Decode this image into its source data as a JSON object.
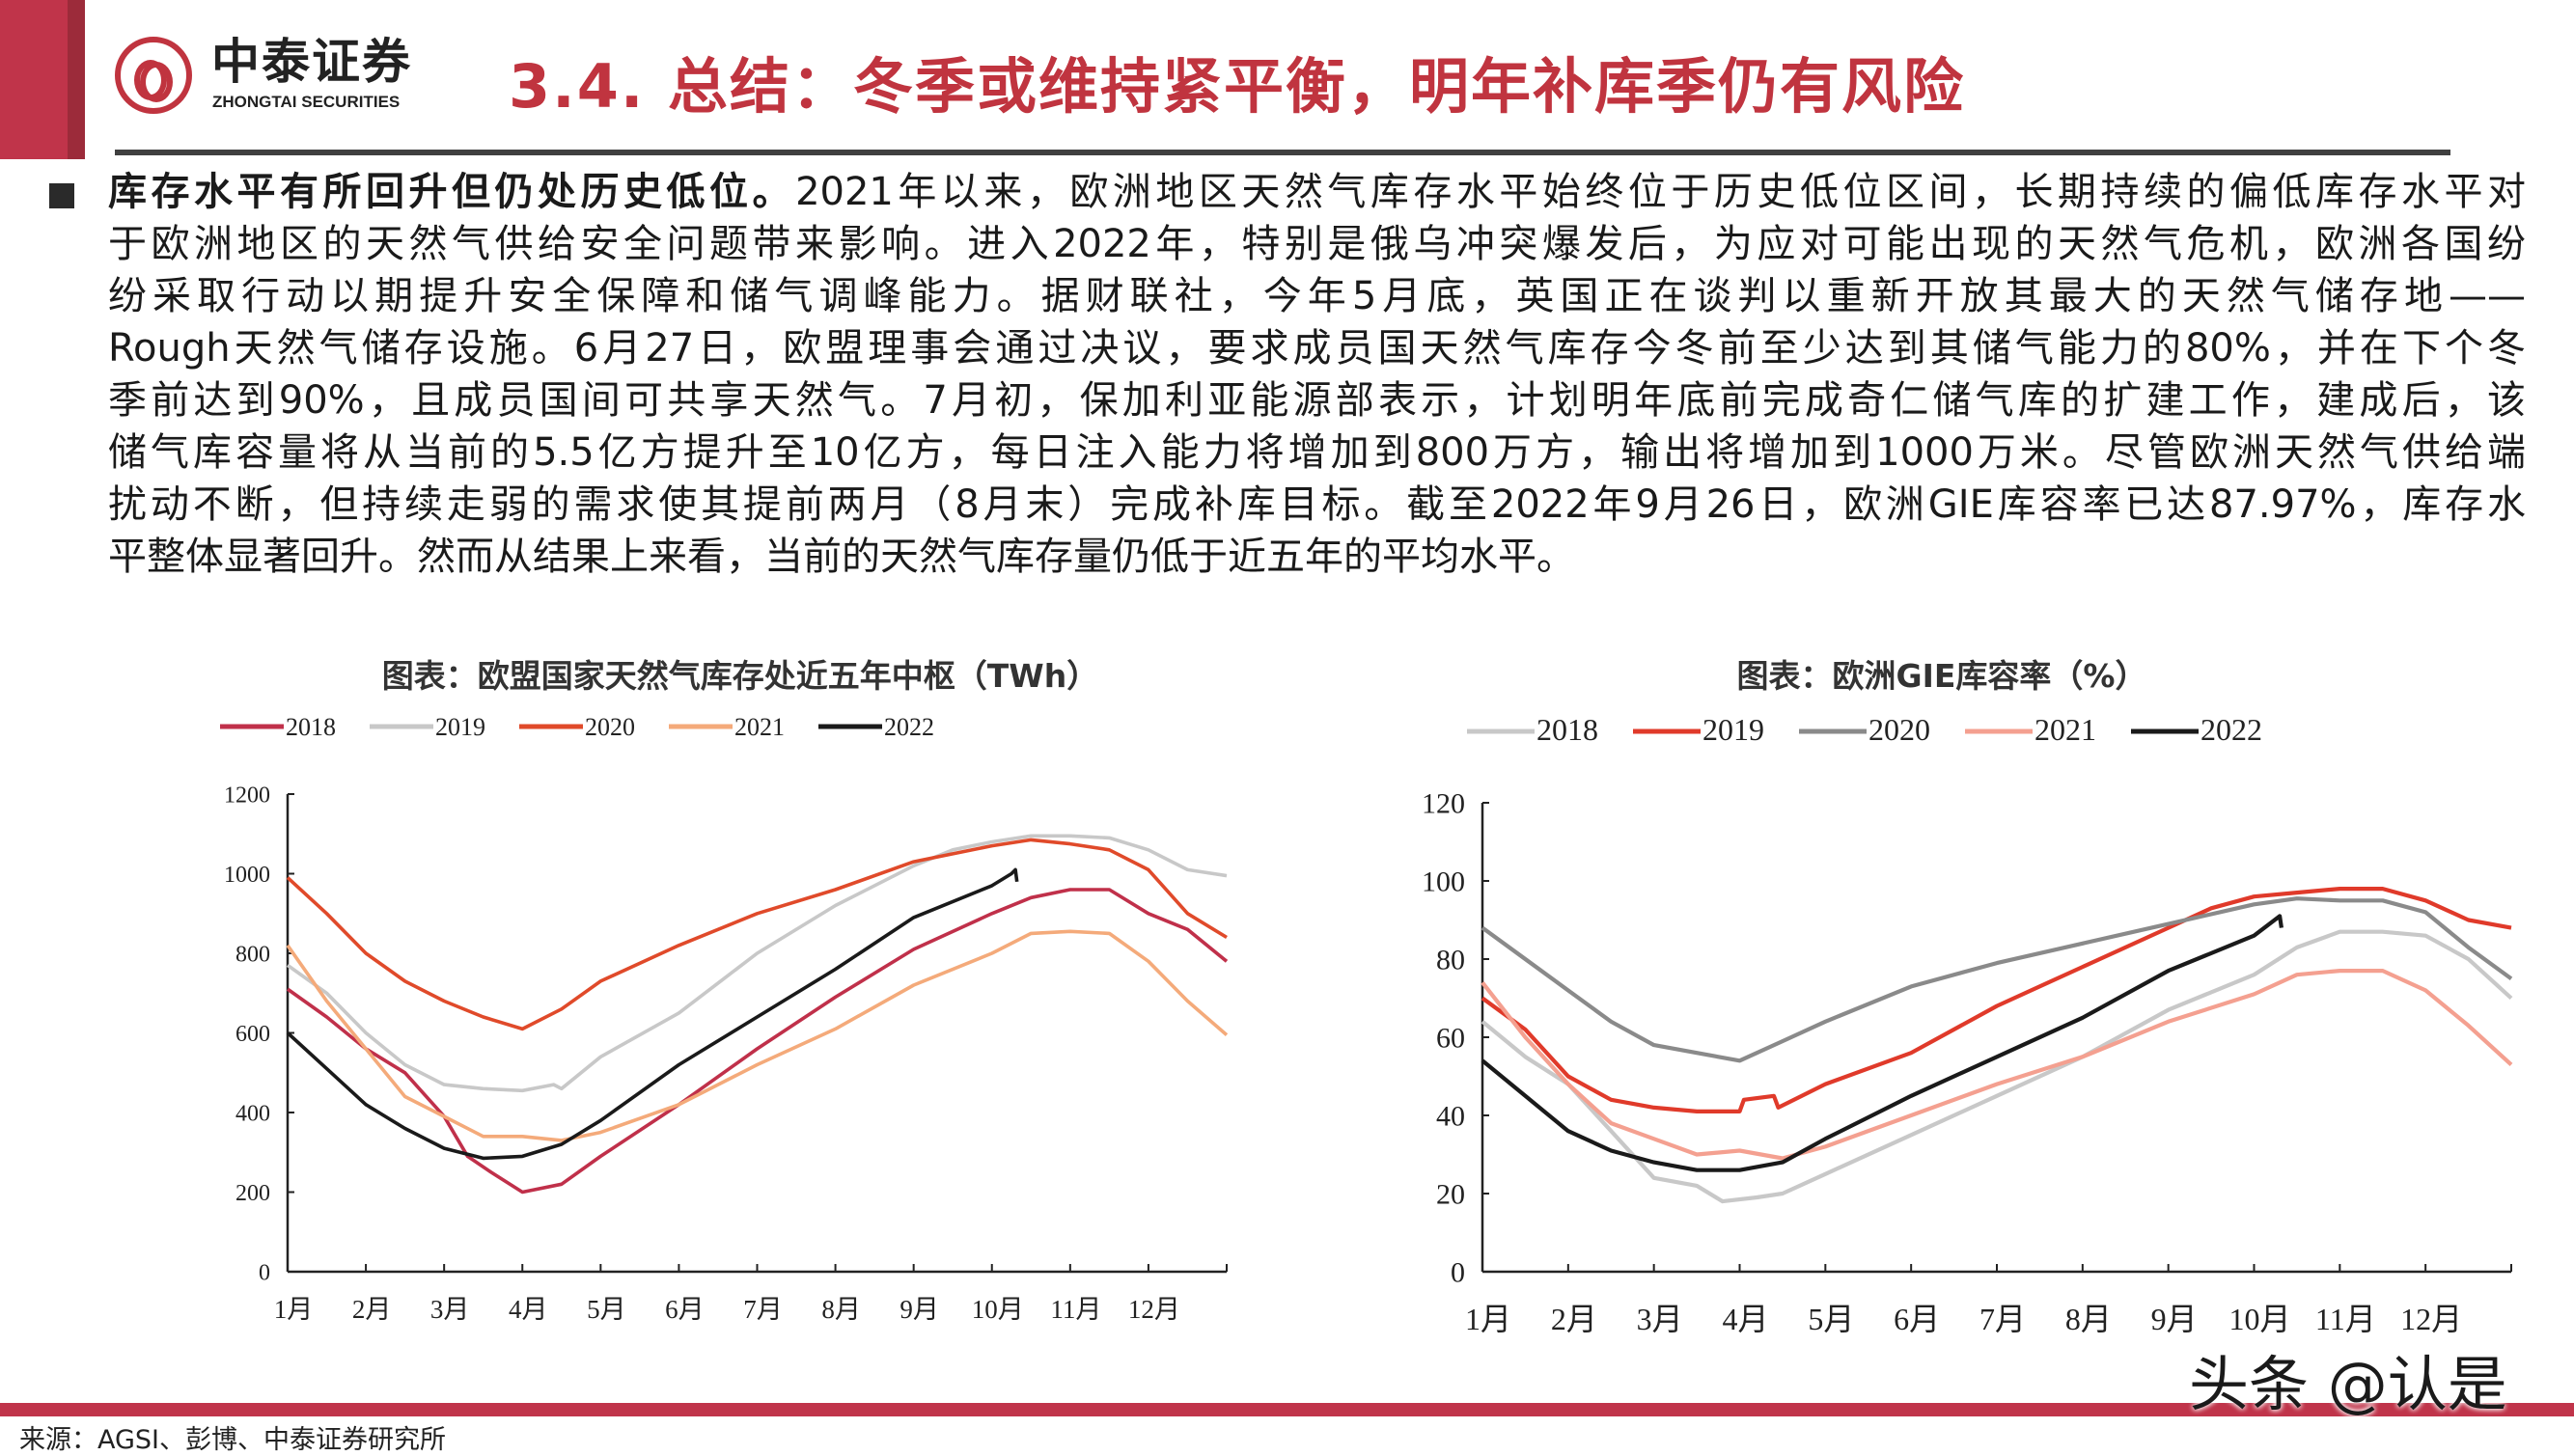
{
  "header": {
    "logo_cn": "中泰证券",
    "logo_en": "ZHONGTAI SECURITIES",
    "title": "3.4.  总结：冬季或维持紧平衡，明年补库季仍有风险"
  },
  "body": {
    "lead": "库存水平有所回升但仍处历史低位。",
    "lines": [
      "2021年以来，欧洲地区天然气库存水平始终位于历史低位区间，长期持续的偏低库存水平对",
      "于欧洲地区的天然气供给安全问题带来影响。进入2022年，特别是俄乌冲突爆发后，为应对可能出现的天然气危机，欧洲各国纷",
      "纷采取行动以期提升安全保障和储气调峰能力。据财联社，今年5月底，英国正在谈判以重新开放其最大的天然气储存地——",
      "Rough天然气储存设施。6月27日，欧盟理事会通过决议，要求成员国天然气库存今冬前至少达到其储气能力的80%，并在下个冬",
      "季前达到90%，且成员国间可共享天然气。7月初，保加利亚能源部表示，计划明年底前完成奇仁储气库的扩建工作，建成后，该",
      "储气库容量将从当前的5.5亿方提升至10亿方，每日注入能力将增加到800万方，输出将增加到1000万米。尽管欧洲天然气供给端",
      "扰动不断，但持续走弱的需求使其提前两月（8月末）完成补库目标。截至2022年9月26日，欧洲GIE库容率已达87.97%，库存水",
      "平整体显著回升。然而从结果上来看，当前的天然气库存量仍低于近五年的平均水平。"
    ]
  },
  "footer": {
    "source": "来源：AGSI、彭博、中泰证券研究所",
    "watermark": "头条 @认是"
  },
  "chart_data": [
    {
      "type": "line",
      "title": "图表：欧盟国家天然气库存处近五年中枢（TWh）",
      "xlabel": "",
      "ylabel": "",
      "x_ticks": [
        "1月",
        "2月",
        "3月",
        "4月",
        "5月",
        "6月",
        "7月",
        "8月",
        "9月",
        "10月",
        "11月",
        "12月"
      ],
      "xlim": [
        0,
        12
      ],
      "ylim": [
        0,
        1200
      ],
      "y_ticks": [
        0,
        200,
        400,
        600,
        800,
        1000,
        1200
      ],
      "legend": "top",
      "series": [
        {
          "name": "2018",
          "color": "#c0304a",
          "points": [
            [
              0,
              710
            ],
            [
              0.5,
              640
            ],
            [
              1,
              560
            ],
            [
              1.5,
              500
            ],
            [
              2,
              390
            ],
            [
              2.3,
              290
            ],
            [
              2.6,
              250
            ],
            [
              3,
              200
            ],
            [
              3.5,
              220
            ],
            [
              4,
              290
            ],
            [
              5,
              420
            ],
            [
              6,
              560
            ],
            [
              7,
              690
            ],
            [
              8,
              810
            ],
            [
              9,
              900
            ],
            [
              9.5,
              940
            ],
            [
              10,
              960
            ],
            [
              10.5,
              960
            ],
            [
              11,
              900
            ],
            [
              11.5,
              860
            ],
            [
              12,
              780
            ]
          ]
        },
        {
          "name": "2019",
          "color": "#c8c8c8",
          "points": [
            [
              0,
              770
            ],
            [
              0.5,
              700
            ],
            [
              1,
              600
            ],
            [
              1.5,
              520
            ],
            [
              2,
              470
            ],
            [
              2.5,
              460
            ],
            [
              3,
              455
            ],
            [
              3.4,
              470
            ],
            [
              3.5,
              460
            ],
            [
              4,
              540
            ],
            [
              5,
              650
            ],
            [
              6,
              800
            ],
            [
              7,
              920
            ],
            [
              8,
              1020
            ],
            [
              8.5,
              1060
            ],
            [
              9,
              1080
            ],
            [
              9.5,
              1095
            ],
            [
              10,
              1095
            ],
            [
              10.5,
              1090
            ],
            [
              11,
              1060
            ],
            [
              11.5,
              1010
            ],
            [
              12,
              995
            ]
          ]
        },
        {
          "name": "2020",
          "color": "#e04a2a",
          "points": [
            [
              0,
              990
            ],
            [
              0.5,
              900
            ],
            [
              1,
              800
            ],
            [
              1.5,
              730
            ],
            [
              2,
              680
            ],
            [
              2.5,
              640
            ],
            [
              3,
              610
            ],
            [
              3.5,
              660
            ],
            [
              4,
              730
            ],
            [
              5,
              820
            ],
            [
              6,
              900
            ],
            [
              7,
              960
            ],
            [
              8,
              1030
            ],
            [
              9,
              1070
            ],
            [
              9.5,
              1085
            ],
            [
              10,
              1075
            ],
            [
              10.5,
              1060
            ],
            [
              11,
              1010
            ],
            [
              11.5,
              900
            ],
            [
              12,
              840
            ]
          ]
        },
        {
          "name": "2021",
          "color": "#f4aa7a",
          "points": [
            [
              0,
              820
            ],
            [
              0.5,
              680
            ],
            [
              1,
              560
            ],
            [
              1.5,
              440
            ],
            [
              2,
              390
            ],
            [
              2.5,
              340
            ],
            [
              3,
              340
            ],
            [
              3.5,
              330
            ],
            [
              4,
              350
            ],
            [
              5,
              420
            ],
            [
              6,
              520
            ],
            [
              7,
              610
            ],
            [
              8,
              720
            ],
            [
              9,
              800
            ],
            [
              9.5,
              850
            ],
            [
              10,
              855
            ],
            [
              10.5,
              850
            ],
            [
              11,
              780
            ],
            [
              11.5,
              680
            ],
            [
              12,
              595
            ]
          ]
        },
        {
          "name": "2022",
          "color": "#1a1a1a",
          "points": [
            [
              0,
              600
            ],
            [
              0.5,
              510
            ],
            [
              1,
              420
            ],
            [
              1.5,
              360
            ],
            [
              2,
              310
            ],
            [
              2.5,
              285
            ],
            [
              3,
              290
            ],
            [
              3.5,
              320
            ],
            [
              4,
              380
            ],
            [
              5,
              520
            ],
            [
              6,
              640
            ],
            [
              7,
              760
            ],
            [
              8,
              890
            ],
            [
              9,
              970
            ],
            [
              9.25,
              1000
            ],
            [
              9.3,
              1010
            ],
            [
              9.32,
              980
            ]
          ]
        }
      ]
    },
    {
      "type": "line",
      "title": "图表：欧洲GIE库容率（%）",
      "xlabel": "",
      "ylabel": "",
      "x_ticks": [
        "1月",
        "2月",
        "3月",
        "4月",
        "5月",
        "6月",
        "7月",
        "8月",
        "9月",
        "10月",
        "11月",
        "12月"
      ],
      "xlim": [
        0,
        12
      ],
      "ylim": [
        0,
        120
      ],
      "y_ticks": [
        0,
        20,
        40,
        60,
        80,
        100,
        120
      ],
      "legend": "top",
      "series": [
        {
          "name": "2018",
          "color": "#c8c8c8",
          "points": [
            [
              0,
              64
            ],
            [
              0.5,
              55
            ],
            [
              1,
              48
            ],
            [
              1.5,
              36
            ],
            [
              2,
              24
            ],
            [
              2.5,
              22
            ],
            [
              2.8,
              18
            ],
            [
              3.2,
              19
            ],
            [
              3.5,
              20
            ],
            [
              4,
              25
            ],
            [
              5,
              35
            ],
            [
              6,
              45
            ],
            [
              7,
              55
            ],
            [
              8,
              67
            ],
            [
              9,
              76
            ],
            [
              9.5,
              83
            ],
            [
              10,
              87
            ],
            [
              10.5,
              87
            ],
            [
              11,
              86
            ],
            [
              11.5,
              80
            ],
            [
              12,
              70
            ]
          ]
        },
        {
          "name": "2019",
          "color": "#e03a2a",
          "points": [
            [
              0,
              70
            ],
            [
              0.5,
              62
            ],
            [
              1,
              50
            ],
            [
              1.5,
              44
            ],
            [
              2,
              42
            ],
            [
              2.5,
              41
            ],
            [
              3,
              41
            ],
            [
              3.05,
              44
            ],
            [
              3.4,
              45
            ],
            [
              3.45,
              42
            ],
            [
              4,
              48
            ],
            [
              5,
              56
            ],
            [
              6,
              68
            ],
            [
              7,
              78
            ],
            [
              8,
              88
            ],
            [
              8.5,
              93
            ],
            [
              9,
              96
            ],
            [
              9.5,
              97
            ],
            [
              10,
              98
            ],
            [
              10.5,
              98
            ],
            [
              11,
              95
            ],
            [
              11.5,
              90
            ],
            [
              12,
              88
            ]
          ]
        },
        {
          "name": "2020",
          "color": "#8a8a8a",
          "points": [
            [
              0,
              88
            ],
            [
              0.5,
              80
            ],
            [
              1,
              72
            ],
            [
              1.5,
              64
            ],
            [
              2,
              58
            ],
            [
              2.5,
              56
            ],
            [
              3,
              54
            ],
            [
              3.5,
              59
            ],
            [
              4,
              64
            ],
            [
              5,
              73
            ],
            [
              6,
              79
            ],
            [
              7,
              84
            ],
            [
              8,
              89
            ],
            [
              9,
              94
            ],
            [
              9.5,
              95.5
            ],
            [
              10,
              95
            ],
            [
              10.5,
              95
            ],
            [
              11,
              92
            ],
            [
              11.5,
              83
            ],
            [
              12,
              75
            ]
          ]
        },
        {
          "name": "2021",
          "color": "#f4a090",
          "points": [
            [
              0,
              74
            ],
            [
              0.5,
              60
            ],
            [
              1,
              48
            ],
            [
              1.5,
              38
            ],
            [
              2,
              34
            ],
            [
              2.5,
              30
            ],
            [
              3,
              31
            ],
            [
              3.5,
              29
            ],
            [
              4,
              32
            ],
            [
              5,
              40
            ],
            [
              6,
              48
            ],
            [
              7,
              55
            ],
            [
              8,
              64
            ],
            [
              9,
              71
            ],
            [
              9.5,
              76
            ],
            [
              10,
              77
            ],
            [
              10.5,
              77
            ],
            [
              11,
              72
            ],
            [
              11.5,
              63
            ],
            [
              12,
              53
            ]
          ]
        },
        {
          "name": "2022",
          "color": "#1a1a1a",
          "points": [
            [
              0,
              54
            ],
            [
              0.5,
              45
            ],
            [
              1,
              36
            ],
            [
              1.5,
              31
            ],
            [
              2,
              28
            ],
            [
              2.5,
              26
            ],
            [
              3,
              26
            ],
            [
              3.5,
              28
            ],
            [
              4,
              34
            ],
            [
              5,
              45
            ],
            [
              6,
              55
            ],
            [
              7,
              65
            ],
            [
              8,
              77
            ],
            [
              9,
              86
            ],
            [
              9.3,
              91
            ],
            [
              9.32,
              88
            ]
          ]
        }
      ]
    }
  ]
}
